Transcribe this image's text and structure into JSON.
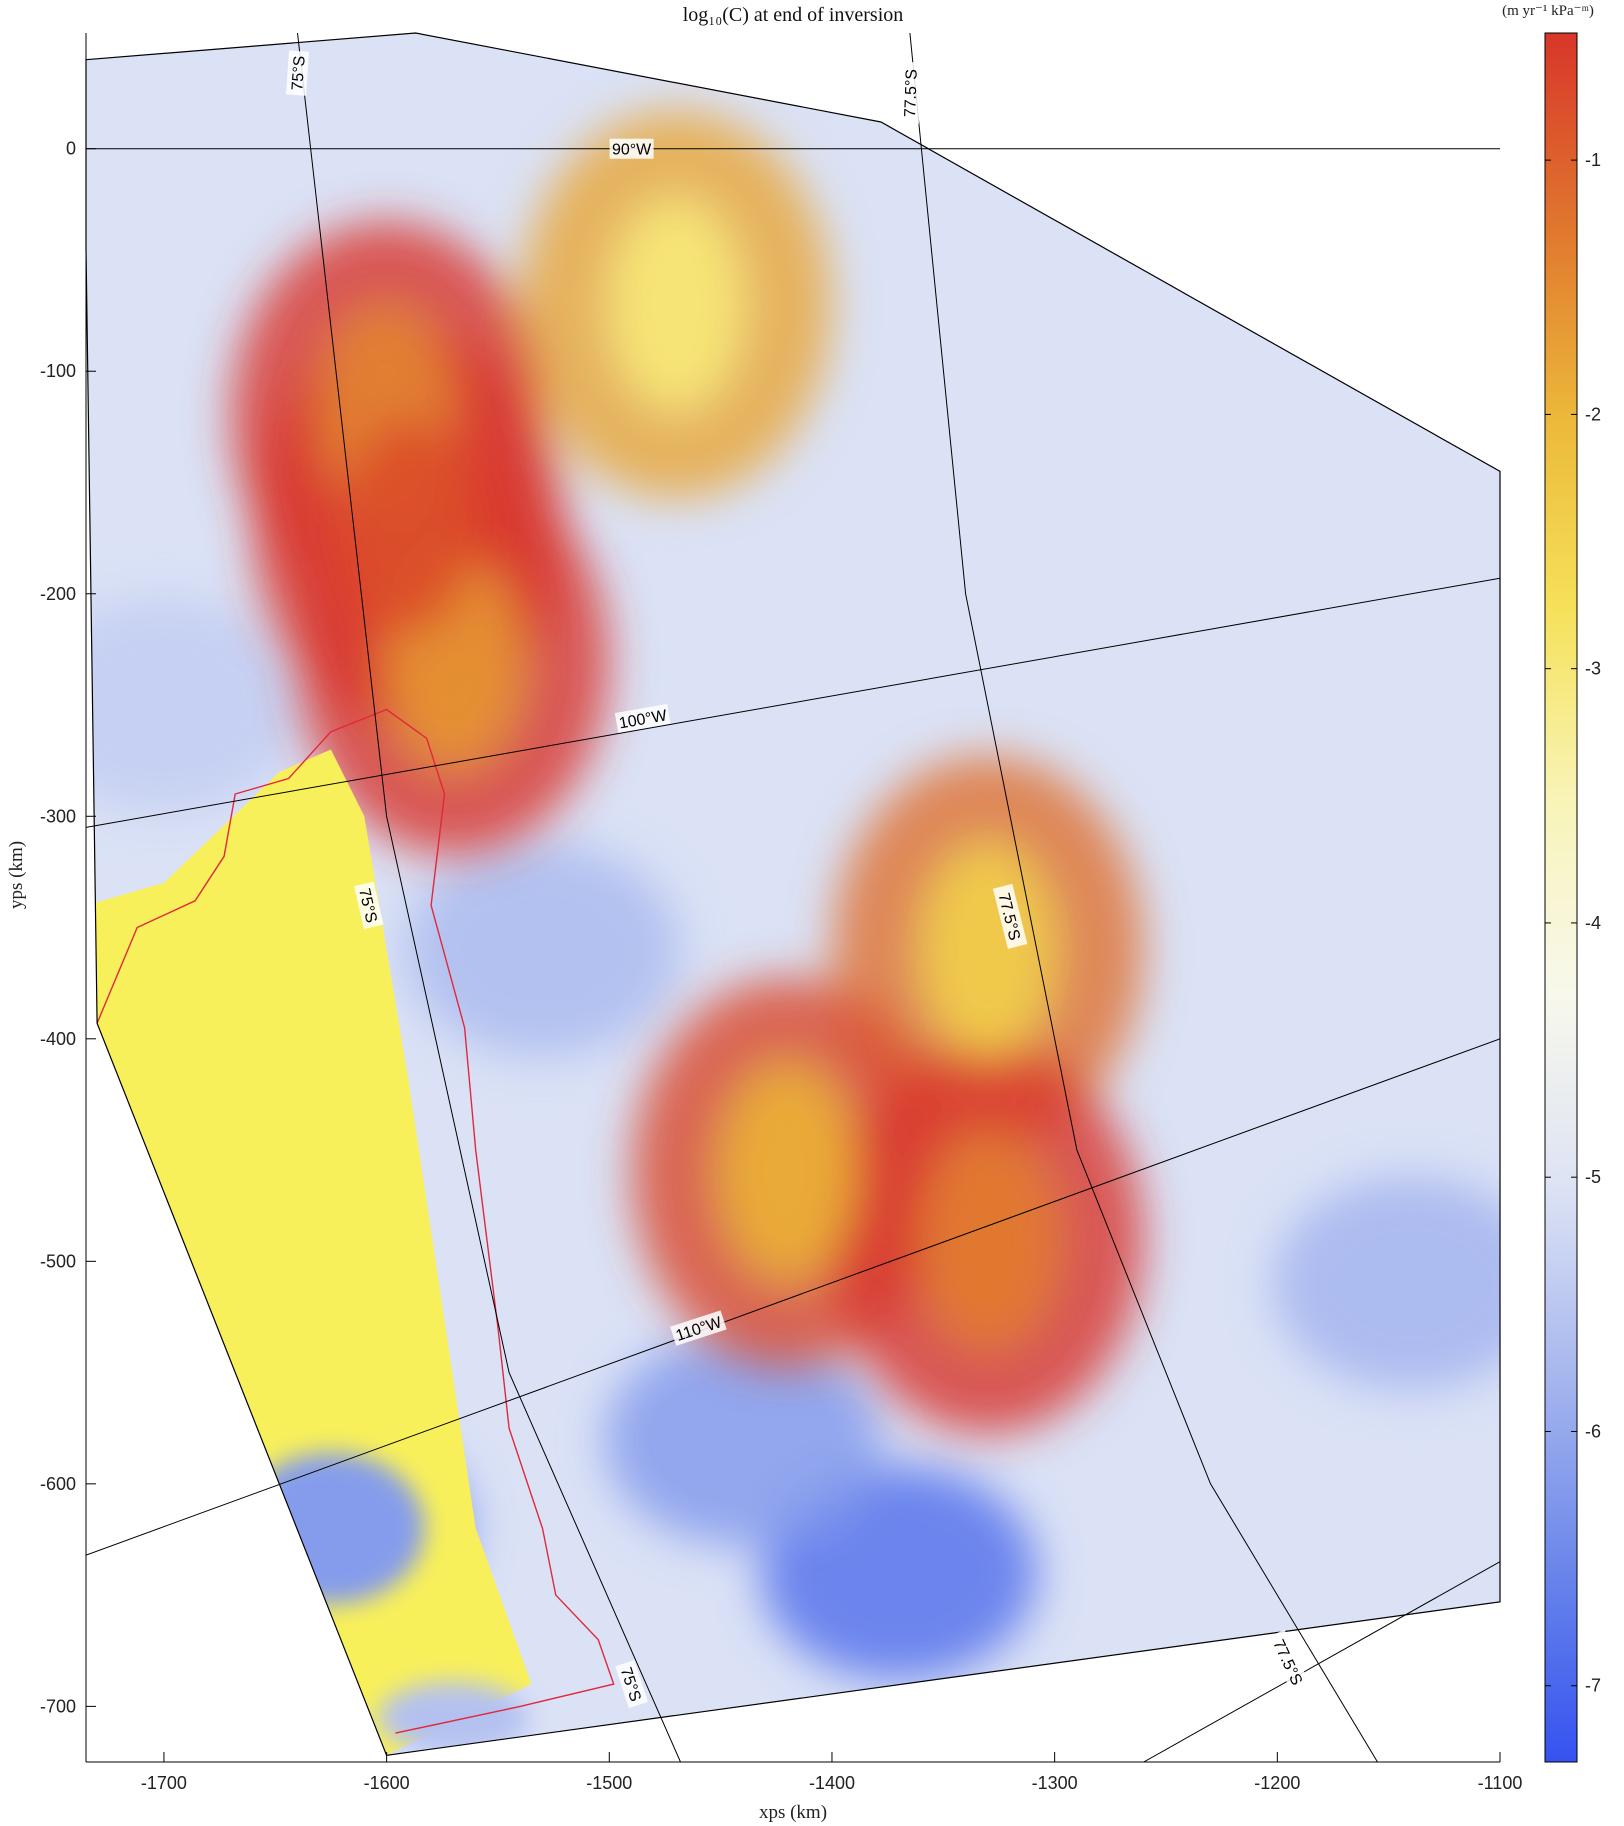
{
  "chart_data": {
    "type": "heatmap",
    "title": "log₁₀(C) at end of inversion",
    "xlabel": "xps (km)",
    "ylabel": "yps (km)",
    "xlim": [
      -1735,
      -1100
    ],
    "ylim": [
      -725,
      52
    ],
    "x_ticks": [
      -1700,
      -1600,
      -1500,
      -1400,
      -1300,
      -1200,
      -1100
    ],
    "y_ticks": [
      0,
      -100,
      -200,
      -300,
      -400,
      -500,
      -600,
      -700
    ],
    "colorbar": {
      "label": "(m yr⁻¹ kPa⁻ᵐ)",
      "range": [
        -7.3,
        -0.5
      ],
      "ticks": [
        -1,
        -2,
        -3,
        -4,
        -5,
        -6,
        -7
      ],
      "colors": [
        "#3552f0",
        "#6a86ea",
        "#a6b6ee",
        "#dde3f4",
        "#f8f8ec",
        "#f8f4b8",
        "#f6e15a",
        "#ecb83a",
        "#e0762e",
        "#d8362a"
      ]
    },
    "domain_outline": [
      [
        -1735,
        40
      ],
      [
        -1587,
        52
      ],
      [
        -1378,
        12
      ],
      [
        -1100,
        -145
      ],
      [
        -1100,
        -653
      ],
      [
        -1600,
        -722
      ],
      [
        -1730,
        -393
      ],
      [
        -1735,
        -45
      ]
    ],
    "ice_shelf_region": [
      [
        -1735,
        -393
      ],
      [
        -1600,
        -722
      ],
      [
        -1535,
        -690
      ],
      [
        -1560,
        -620
      ],
      [
        -1590,
        -420
      ],
      [
        -1610,
        -300
      ],
      [
        -1625,
        -270
      ],
      [
        -1648,
        -280
      ],
      [
        -1700,
        -330
      ],
      [
        -1735,
        -340
      ]
    ],
    "ice_shelf_contour": [
      [
        -1730,
        -393
      ],
      [
        -1712,
        -350
      ],
      [
        -1686,
        -338
      ],
      [
        -1673,
        -318
      ],
      [
        -1668,
        -290
      ],
      [
        -1644,
        -283
      ],
      [
        -1625,
        -262
      ],
      [
        -1600,
        -252
      ],
      [
        -1582,
        -265
      ],
      [
        -1574,
        -290
      ],
      [
        -1580,
        -340
      ],
      [
        -1565,
        -395
      ],
      [
        -1560,
        -450
      ],
      [
        -1550,
        -530
      ],
      [
        -1545,
        -575
      ],
      [
        -1530,
        -620
      ],
      [
        -1524,
        -650
      ],
      [
        -1505,
        -670
      ],
      [
        -1498,
        -690
      ],
      [
        -1540,
        -700
      ],
      [
        -1596,
        -712
      ]
    ],
    "hotspots": [
      {
        "x": -1590,
        "y": -170,
        "value": -0.8
      },
      {
        "x": -1600,
        "y": -120,
        "value": -1.4
      },
      {
        "x": -1570,
        "y": -230,
        "value": -1.6
      },
      {
        "x": -1330,
        "y": -490,
        "value": -1.3
      },
      {
        "x": -1420,
        "y": -460,
        "value": -1.9
      },
      {
        "x": -1330,
        "y": -360,
        "value": -2.4
      },
      {
        "x": -1470,
        "y": -70,
        "value": -3.0
      }
    ],
    "cold_regions": [
      {
        "x": -1625,
        "y": -620,
        "value": -6.5
      },
      {
        "x": -1370,
        "y": -640,
        "value": -6.8
      },
      {
        "x": -1140,
        "y": -510,
        "value": -5.8
      },
      {
        "x": -1530,
        "y": -360,
        "value": -5.7
      },
      {
        "x": -1440,
        "y": -580,
        "value": -6.2
      },
      {
        "x": -1700,
        "y": -250,
        "value": -5.4
      }
    ],
    "graticule": {
      "latitudes": [
        {
          "label": "75°S",
          "points": [
            [
              -1640,
              52
            ],
            [
              -1600,
              -300
            ],
            [
              -1545,
              -550
            ],
            [
              -1468,
              -725
            ]
          ]
        },
        {
          "label": "77.5°S",
          "points": [
            [
              -1365,
              52
            ],
            [
              -1340,
              -200
            ],
            [
              -1290,
              -450
            ],
            [
              -1230,
              -600
            ],
            [
              -1155,
              -725
            ]
          ]
        }
      ],
      "longitudes": [
        {
          "label": "90°W",
          "points": [
            [
              -1735,
              0
            ],
            [
              -1100,
              0
            ]
          ]
        },
        {
          "label": "100°W",
          "points": [
            [
              -1735,
              -305
            ],
            [
              -1100,
              -193
            ]
          ]
        },
        {
          "label": "110°W",
          "points": [
            [
              -1735,
              -632
            ],
            [
              -1100,
              -400
            ]
          ]
        },
        {
          "label": "",
          "points": [
            [
              -1260,
              -725
            ],
            [
              -1100,
              -635
            ]
          ]
        }
      ],
      "label_positions": [
        {
          "text": "75°S",
          "x": -1640,
          "y": 34,
          "angle": -86
        },
        {
          "text": "75°S",
          "x": -1608,
          "y": -340,
          "angle": 77
        },
        {
          "text": "75°S",
          "x": -1490,
          "y": -690,
          "angle": 72
        },
        {
          "text": "77.5°S",
          "x": -1365,
          "y": 25,
          "angle": -88
        },
        {
          "text": "77.5°S",
          "x": -1320,
          "y": -345,
          "angle": 76
        },
        {
          "text": "77.5°S",
          "x": -1195,
          "y": -680,
          "angle": 65
        },
        {
          "text": "90°W",
          "x": -1490,
          "y": 0,
          "angle": 0
        },
        {
          "text": "100°W",
          "x": -1485,
          "y": -256,
          "angle": -10
        },
        {
          "text": "110°W",
          "x": -1460,
          "y": -530,
          "angle": -18
        }
      ]
    }
  }
}
